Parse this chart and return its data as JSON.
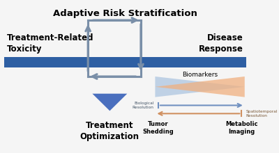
{
  "title": "Adaptive Risk Stratification",
  "left_label": "Treatment-Related\nToxicity",
  "right_label": "Disease\nResponse",
  "bottom_label": "Treatment\nOptimization",
  "biomarkers_label": "Biomarkers",
  "bio_res_label": "Biological\nResolution",
  "spatio_label": "Spatiotemporal\nResolution",
  "tumor_label": "Tumor\nShedding",
  "metabolic_label": "Metabolic\nImaging",
  "bar_color": "#2e5fa3",
  "blue_tri_color": "#4a6fbe",
  "blue_biomarker_color": "#aec6e0",
  "orange_biomarker_color": "#f0b080",
  "arrow_color": "#7a8fa8",
  "bio_arrow_color": "#7090c0",
  "spatio_arrow_color": "#d09060",
  "bg_color": "#f5f5f5"
}
